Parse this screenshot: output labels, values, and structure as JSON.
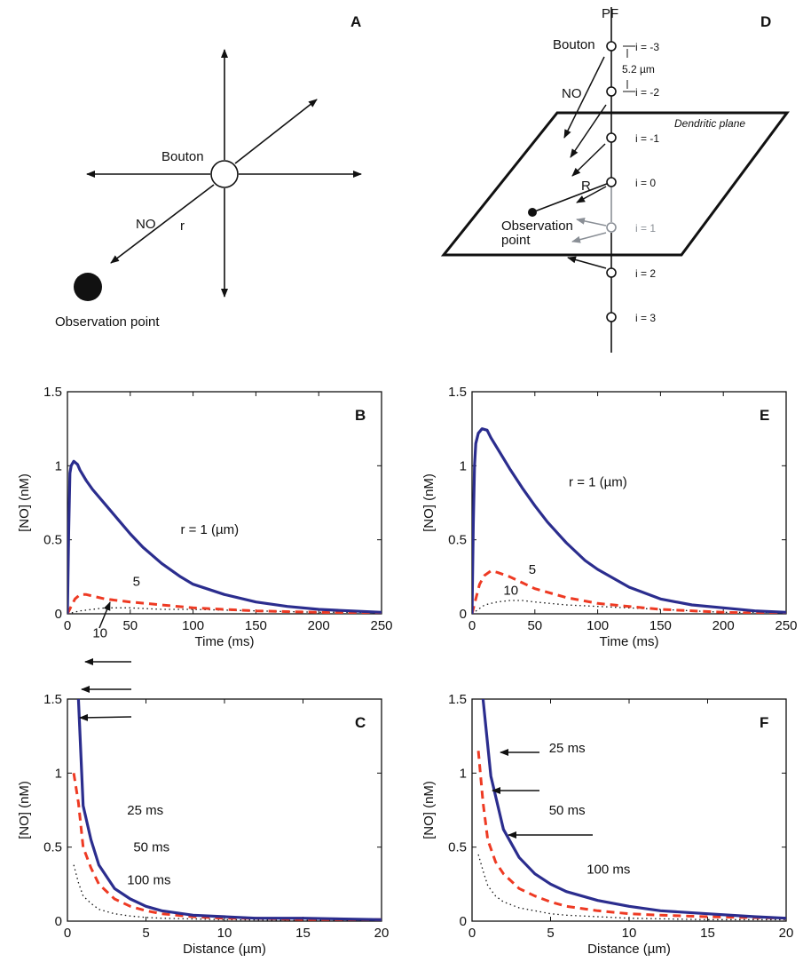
{
  "colors": {
    "series_1": "#2b2d8e",
    "series_2": "#ee3a23",
    "series_3": "#111111",
    "gray": "#8a8f96"
  },
  "diagram_a": {
    "letter": "A",
    "bouton": "Bouton",
    "no": "NO",
    "r": "r",
    "observation": "Observation point"
  },
  "diagram_d": {
    "letter": "D",
    "pf": "PF",
    "bouton": "Bouton",
    "spacing": "5.2 µm",
    "no": "NO",
    "plane": "Dendritic plane",
    "r": "R",
    "observation": "Observation",
    "observation2": "point",
    "indices": [
      "i = -3",
      "i = -2",
      "i = -1",
      "i = 0",
      "i = 1",
      "i = 2",
      "i = 3"
    ]
  },
  "chart_data": [
    {
      "panel": "B",
      "type": "line",
      "xlabel": "Time (ms)",
      "ylabel": "[NO] (nM)",
      "xlim": [
        0,
        250
      ],
      "ylim": [
        0,
        1.5
      ],
      "xticks": [
        "0",
        "50",
        "100",
        "150",
        "200",
        "250"
      ],
      "yticks": [
        "0",
        "0.5",
        "1",
        "1.5"
      ],
      "series": [
        {
          "x": [
            0,
            1,
            2,
            3,
            5,
            8,
            10,
            15,
            20,
            30,
            40,
            50,
            60,
            75,
            90,
            100,
            125,
            150,
            175,
            200,
            225,
            250
          ],
          "y": [
            0,
            0.55,
            0.95,
            1.0,
            1.03,
            1.01,
            0.97,
            0.9,
            0.84,
            0.74,
            0.64,
            0.54,
            0.45,
            0.34,
            0.25,
            0.2,
            0.13,
            0.08,
            0.05,
            0.03,
            0.02,
            0.01
          ]
        },
        {
          "x": [
            0,
            3,
            6,
            10,
            15,
            20,
            30,
            40,
            50,
            75,
            100,
            125,
            150,
            200,
            250
          ],
          "y": [
            0,
            0.05,
            0.1,
            0.13,
            0.13,
            0.12,
            0.1,
            0.09,
            0.08,
            0.06,
            0.04,
            0.03,
            0.02,
            0.01,
            0
          ]
        },
        {
          "x": [
            0,
            5,
            10,
            20,
            30,
            40,
            50,
            75,
            100,
            150,
            200,
            250
          ],
          "y": [
            0,
            0.01,
            0.02,
            0.03,
            0.04,
            0.04,
            0.04,
            0.03,
            0.03,
            0.02,
            0.01,
            0.01
          ]
        }
      ],
      "annotations": [
        {
          "text": "r = 1 (µm)",
          "x": 90,
          "y": 0.57
        },
        {
          "text": "5",
          "x": 52,
          "y": 0.22
        },
        {
          "text": "10",
          "x": 20,
          "y": -0.13
        }
      ]
    },
    {
      "panel": "C",
      "type": "line",
      "xlabel": "Distance (µm)",
      "ylabel": "[NO] (nM)",
      "xlim": [
        0,
        20
      ],
      "ylim": [
        0,
        1.5
      ],
      "xticks": [
        "0",
        "5",
        "10",
        "15",
        "20"
      ],
      "yticks": [
        "0",
        "0.5",
        "1",
        "1.5"
      ],
      "series": [
        {
          "x": [
            0.7,
            1,
            1.5,
            2,
            3,
            4,
            5,
            6,
            8,
            10,
            12,
            15,
            20
          ],
          "y": [
            1.5,
            0.78,
            0.55,
            0.38,
            0.22,
            0.15,
            0.1,
            0.07,
            0.04,
            0.03,
            0.02,
            0.02,
            0.01
          ]
        },
        {
          "x": [
            0.4,
            0.7,
            1,
            1.5,
            2,
            3,
            4,
            5,
            6,
            8,
            10,
            12,
            15,
            20
          ],
          "y": [
            1.0,
            0.8,
            0.5,
            0.36,
            0.25,
            0.15,
            0.1,
            0.07,
            0.05,
            0.03,
            0.02,
            0.02,
            0.01,
            0.01
          ]
        },
        {
          "x": [
            0.4,
            0.7,
            1,
            1.5,
            2,
            3,
            4,
            5,
            6,
            8,
            10,
            15,
            20
          ],
          "y": [
            0.38,
            0.26,
            0.17,
            0.12,
            0.08,
            0.05,
            0.035,
            0.025,
            0.02,
            0.015,
            0.01,
            0.005,
            0.005
          ]
        }
      ],
      "annotations": [
        {
          "text": "25 ms",
          "x": 3.8,
          "y": 0.75
        },
        {
          "text": "50 ms",
          "x": 4.2,
          "y": 0.5
        },
        {
          "text": "100 ms",
          "x": 3.8,
          "y": 0.28
        }
      ]
    },
    {
      "panel": "E",
      "type": "line",
      "xlabel": "Time (ms)",
      "ylabel": "[NO] (nM)",
      "xlim": [
        0,
        250
      ],
      "ylim": [
        0,
        1.5
      ],
      "xticks": [
        "0",
        "50",
        "100",
        "150",
        "200",
        "250"
      ],
      "yticks": [
        "0",
        "0.5",
        "1",
        "1.5"
      ],
      "series": [
        {
          "x": [
            0,
            1,
            2,
            3,
            5,
            8,
            12,
            15,
            20,
            30,
            40,
            50,
            60,
            75,
            90,
            100,
            125,
            150,
            175,
            200,
            225,
            250
          ],
          "y": [
            0,
            0.6,
            1.0,
            1.15,
            1.22,
            1.25,
            1.24,
            1.19,
            1.12,
            0.98,
            0.85,
            0.73,
            0.62,
            0.48,
            0.36,
            0.3,
            0.18,
            0.1,
            0.06,
            0.04,
            0.02,
            0.01
          ]
        },
        {
          "x": [
            0,
            3,
            6,
            10,
            15,
            20,
            30,
            40,
            50,
            75,
            100,
            125,
            150,
            200,
            250
          ],
          "y": [
            0,
            0.1,
            0.2,
            0.26,
            0.29,
            0.28,
            0.25,
            0.21,
            0.17,
            0.11,
            0.07,
            0.05,
            0.03,
            0.01,
            0
          ]
        },
        {
          "x": [
            0,
            5,
            10,
            20,
            30,
            40,
            50,
            75,
            100,
            150,
            200,
            250
          ],
          "y": [
            0,
            0.03,
            0.06,
            0.08,
            0.09,
            0.09,
            0.08,
            0.06,
            0.05,
            0.03,
            0.01,
            0.01
          ]
        }
      ],
      "annotations": [
        {
          "text": "r = 1 (µm)",
          "x": 77,
          "y": 0.89
        },
        {
          "text": "5",
          "x": 45,
          "y": 0.3
        },
        {
          "text": "10",
          "x": 25,
          "y": 0.16
        }
      ]
    },
    {
      "panel": "F",
      "type": "line",
      "xlabel": "Distance (µm)",
      "ylabel": "[NO] (nM)",
      "xlim": [
        0,
        20
      ],
      "ylim": [
        0,
        1.5
      ],
      "xticks": [
        "0",
        "5",
        "10",
        "15",
        "20"
      ],
      "yticks": [
        "0",
        "0.5",
        "1",
        "1.5"
      ],
      "series": [
        {
          "x": [
            0.7,
            1.2,
            2,
            3,
            4,
            5,
            6,
            8,
            10,
            12,
            15,
            18,
            20
          ],
          "y": [
            1.5,
            0.98,
            0.62,
            0.43,
            0.32,
            0.25,
            0.2,
            0.14,
            0.1,
            0.07,
            0.05,
            0.03,
            0.02
          ]
        },
        {
          "x": [
            0.4,
            0.7,
            1,
            1.5,
            2,
            3,
            4,
            5,
            6,
            8,
            10,
            12,
            15,
            20
          ],
          "y": [
            1.15,
            0.8,
            0.55,
            0.4,
            0.32,
            0.22,
            0.17,
            0.13,
            0.1,
            0.07,
            0.05,
            0.04,
            0.03,
            0.02
          ]
        },
        {
          "x": [
            0.4,
            0.7,
            1,
            1.5,
            2,
            3,
            4,
            5,
            6,
            8,
            10,
            15,
            20
          ],
          "y": [
            0.45,
            0.34,
            0.24,
            0.17,
            0.13,
            0.09,
            0.07,
            0.05,
            0.04,
            0.03,
            0.02,
            0.01,
            0.01
          ]
        }
      ],
      "annotations": [
        {
          "text": "25 ms",
          "x": 4.9,
          "y": 1.17
        },
        {
          "text": "50 ms",
          "x": 4.9,
          "y": 0.75
        },
        {
          "text": "100 ms",
          "x": 7.3,
          "y": 0.35
        }
      ]
    }
  ]
}
